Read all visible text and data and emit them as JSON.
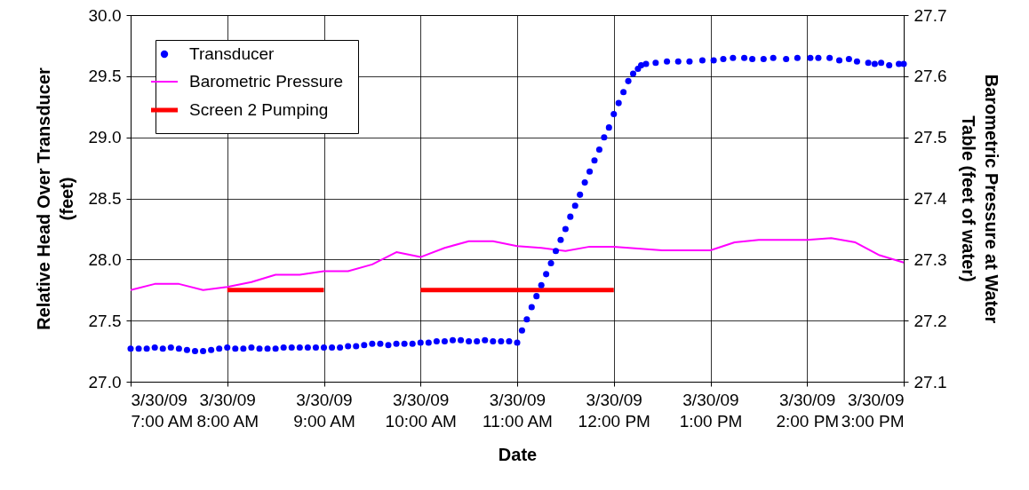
{
  "chart_data": {
    "type": "scatter",
    "xlabel": "Date",
    "ylabel": "Relative Head Over Transducer\n(feet)",
    "y2label": "Barometric Pressure at Water\nTable (feet of water)",
    "xlim": [
      "--03-30T07:00",
      "--03-30T15:00"
    ],
    "xticks": [
      {
        "value": "--03-30T07:00",
        "label": "3/30/09\n7:00 AM"
      },
      {
        "value": "--03-30T08:00",
        "label": "3/30/09\n8:00 AM"
      },
      {
        "value": "--03-30T09:00",
        "label": "3/30/09\n9:00 AM"
      },
      {
        "value": "--03-30T10:00",
        "label": "3/30/09\n10:00 AM"
      },
      {
        "value": "--03-30T11:00",
        "label": "3/30/09\n11:00 AM"
      },
      {
        "value": "--03-30T12:00",
        "label": "3/30/09\n12:00 PM"
      },
      {
        "value": "--03-30T13:00",
        "label": "3/30/09\n1:00 PM"
      },
      {
        "value": "--03-30T14:00",
        "label": "3/30/09\n2:00 PM"
      },
      {
        "value": "--03-30T15:00",
        "label": "3/30/09\n3:00 PM"
      }
    ],
    "ylim": [
      27,
      30
    ],
    "yticks": [
      {
        "value": 27,
        "label": "27.0"
      },
      27.5,
      {
        "value": 28,
        "label": "28.0"
      },
      28.5,
      {
        "value": 29,
        "label": "29.0"
      },
      29.5,
      {
        "value": 30,
        "label": "30.0"
      }
    ],
    "y2lim": [
      27.1,
      27.7
    ],
    "y2ticks": [
      27.1,
      27.2,
      27.3,
      27.4,
      27.5,
      27.6,
      27.7
    ],
    "grid": true,
    "legend": "top left",
    "line_style": "solid",
    "series": [
      {
        "name": "Transducer",
        "type": "scatter",
        "marker": "circle",
        "color": "#0000ff",
        "x": [
          "--03-30T07:00",
          "--03-30T07:05",
          "--03-30T07:10",
          "--03-30T07:15",
          "--03-30T07:20",
          "--03-30T07:25",
          "--03-30T07:30",
          "--03-30T07:35",
          "--03-30T07:40",
          "--03-30T07:45",
          "--03-30T07:50",
          "--03-30T07:55",
          "--03-30T08:00",
          "--03-30T08:05",
          "--03-30T08:10",
          "--03-30T08:15",
          "--03-30T08:20",
          "--03-30T08:25",
          "--03-30T08:30",
          "--03-30T08:35",
          "--03-30T08:40",
          "--03-30T08:45",
          "--03-30T08:50",
          "--03-30T08:55",
          "--03-30T09:00",
          "--03-30T09:05",
          "--03-30T09:10",
          "--03-30T09:15",
          "--03-30T09:20",
          "--03-30T09:25",
          "--03-30T09:30",
          "--03-30T09:35",
          "--03-30T09:40",
          "--03-30T09:45",
          "--03-30T09:50",
          "--03-30T09:55",
          "--03-30T10:00",
          "--03-30T10:05",
          "--03-30T10:10",
          "--03-30T10:15",
          "--03-30T10:20",
          "--03-30T10:25",
          "--03-30T10:30",
          "--03-30T10:35",
          "--03-30T10:40",
          "--03-30T10:45",
          "--03-30T10:50",
          "--03-30T10:55",
          "--03-30T11:00",
          "--03-30T11:03",
          "--03-30T11:06",
          "--03-30T11:09",
          "--03-30T11:12",
          "--03-30T11:15",
          "--03-30T11:18",
          "--03-30T11:21",
          "--03-30T11:24",
          "--03-30T11:27",
          "--03-30T11:30",
          "--03-30T11:33",
          "--03-30T11:36",
          "--03-30T11:39",
          "--03-30T11:42",
          "--03-30T11:45",
          "--03-30T11:48",
          "--03-30T11:51",
          "--03-30T11:54",
          "--03-30T11:57",
          "--03-30T12:00",
          "--03-30T12:03",
          "--03-30T12:06",
          "--03-30T12:09",
          "--03-30T12:12",
          "--03-30T12:15",
          "--03-30T12:17",
          "--03-30T12:20",
          "--03-30T12:26",
          "--03-30T12:33",
          "--03-30T12:40",
          "--03-30T12:47",
          "--03-30T12:55",
          "--03-30T13:02",
          "--03-30T13:08",
          "--03-30T13:14",
          "--03-30T13:21",
          "--03-30T13:26",
          "--03-30T13:33",
          "--03-30T13:39",
          "--03-30T13:47",
          "--03-30T13:54",
          "--03-30T14:02",
          "--03-30T14:07",
          "--03-30T14:14",
          "--03-30T14:20",
          "--03-30T14:26",
          "--03-30T14:31",
          "--03-30T14:38",
          "--03-30T14:42",
          "--03-30T14:46",
          "--03-30T14:51",
          "--03-30T14:57",
          "--03-30T15:00"
        ],
        "values": [
          27.27,
          27.27,
          27.27,
          27.28,
          27.27,
          27.28,
          27.27,
          27.26,
          27.25,
          27.25,
          27.26,
          27.27,
          27.28,
          27.27,
          27.27,
          27.28,
          27.27,
          27.27,
          27.27,
          27.28,
          27.28,
          27.28,
          27.28,
          27.28,
          27.28,
          27.28,
          27.28,
          27.29,
          27.29,
          27.3,
          27.31,
          27.31,
          27.3,
          27.31,
          27.31,
          27.31,
          27.32,
          27.32,
          27.33,
          27.33,
          27.34,
          27.34,
          27.33,
          27.33,
          27.34,
          27.33,
          27.33,
          27.33,
          27.32,
          27.42,
          27.51,
          27.61,
          27.7,
          27.79,
          27.88,
          27.97,
          28.07,
          28.16,
          28.25,
          28.35,
          28.44,
          28.53,
          28.63,
          28.72,
          28.81,
          28.9,
          29.0,
          29.08,
          29.19,
          29.28,
          29.37,
          29.46,
          29.52,
          29.56,
          29.59,
          29.6,
          29.61,
          29.62,
          29.62,
          29.62,
          29.63,
          29.63,
          29.64,
          29.65,
          29.65,
          29.64,
          29.64,
          29.65,
          29.64,
          29.65,
          29.65,
          29.65,
          29.65,
          29.63,
          29.64,
          29.62,
          29.61,
          29.6,
          29.61,
          29.59,
          29.6,
          29.6
        ]
      },
      {
        "name": "Barometric Pressure",
        "type": "line",
        "marker": "none",
        "axis": "y2",
        "color": "#ff00ff",
        "x": [
          "--03-30T07:00",
          "--03-30T07:15",
          "--03-30T07:30",
          "--03-30T07:45",
          "--03-30T08:00",
          "--03-30T08:15",
          "--03-30T08:30",
          "--03-30T08:45",
          "--03-30T09:00",
          "--03-30T09:15",
          "--03-30T09:30",
          "--03-30T09:45",
          "--03-30T10:00",
          "--03-30T10:15",
          "--03-30T10:30",
          "--03-30T10:45",
          "--03-30T11:00",
          "--03-30T11:15",
          "--03-30T11:30",
          "--03-30T11:45",
          "--03-30T12:00",
          "--03-30T12:15",
          "--03-30T12:30",
          "--03-30T12:45",
          "--03-30T13:00",
          "--03-30T13:15",
          "--03-30T13:30",
          "--03-30T13:45",
          "--03-30T14:00",
          "--03-30T14:15",
          "--03-30T14:30",
          "--03-30T14:45",
          "--03-30T15:00"
        ],
        "values": [
          27.25,
          27.26,
          27.26,
          27.25,
          27.255,
          27.263,
          27.275,
          27.275,
          27.281,
          27.281,
          27.292,
          27.312,
          27.304,
          27.319,
          27.33,
          27.33,
          27.322,
          27.319,
          27.314,
          27.321,
          27.321,
          27.318,
          27.315,
          27.315,
          27.315,
          27.328,
          27.332,
          27.332,
          27.332,
          27.335,
          27.328,
          27.307,
          27.295
        ]
      },
      {
        "name": "Screen 2 Pumping",
        "type": "line",
        "marker": "none",
        "color": "#ff0000",
        "x": [
          "--03-30T08:00",
          "--03-30T09:00",
          "--03-30T09:30",
          "--03-30T10:00",
          "--03-30T12:00"
        ],
        "values": [
          27.75,
          27.75,
          null,
          27.75,
          27.75
        ]
      }
    ]
  }
}
